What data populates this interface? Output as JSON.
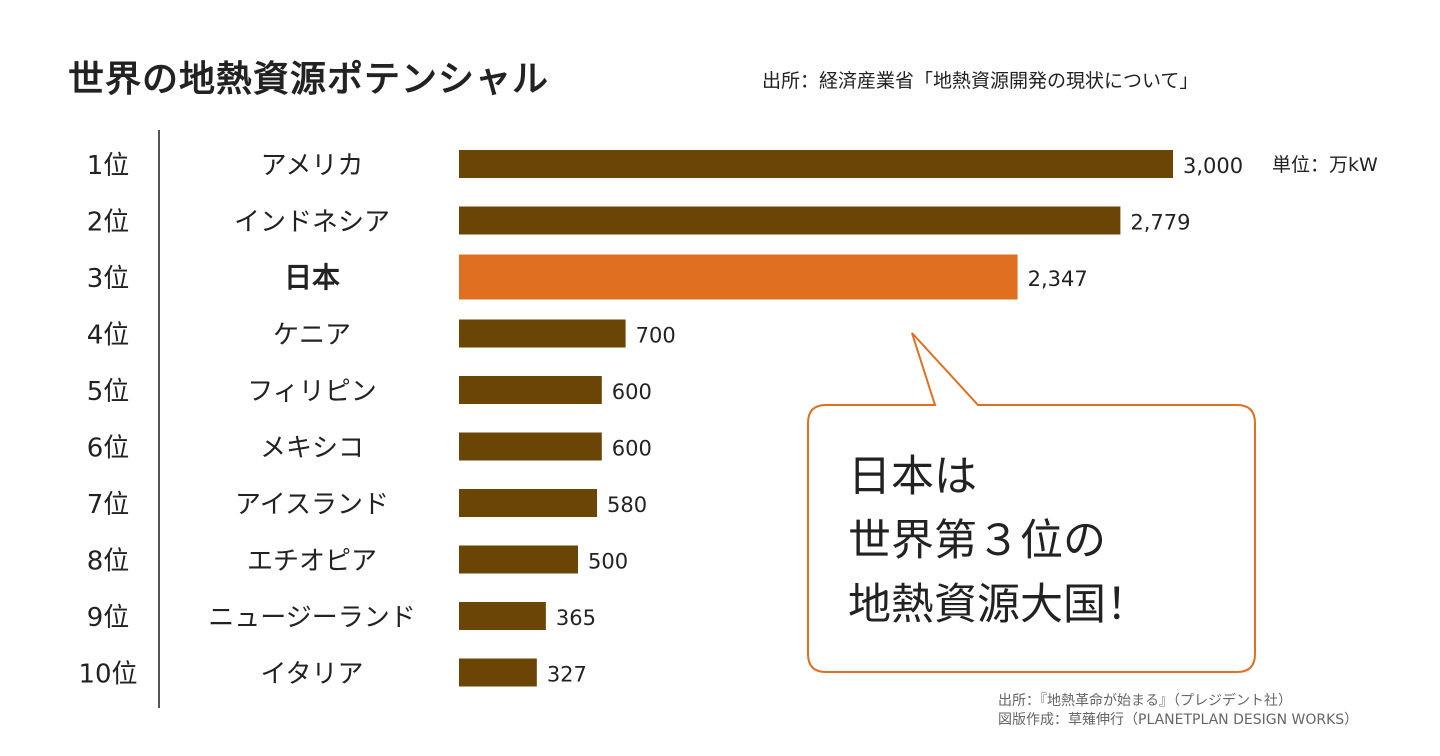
{
  "chart_data": {
    "type": "bar",
    "orientation": "horizontal",
    "title": "世界の地熱資源ポテンシャル",
    "source": "出所：経済産業省「地熱資源開発の現状について」",
    "unit_label": "単位：万kW",
    "ranks": [
      "1位",
      "2位",
      "3位",
      "4位",
      "5位",
      "6位",
      "7位",
      "8位",
      "9位",
      "10位"
    ],
    "categories": [
      "アメリカ",
      "インドネシア",
      "日本",
      "ケニア",
      "フィリピン",
      "メキシコ",
      "アイスランド",
      "エチオピア",
      "ニュージーランド",
      "イタリア"
    ],
    "values": [
      3000,
      2779,
      2347,
      700,
      600,
      600,
      580,
      500,
      365,
      327
    ],
    "value_labels": [
      "3,000",
      "2,779",
      "2,347",
      "700",
      "600",
      "600",
      "580",
      "500",
      "365",
      "327"
    ],
    "highlight_index": 2,
    "xlim": [
      0,
      3000
    ],
    "grid": false,
    "colors": {
      "default": "#6b4506",
      "highlight": "#e07020",
      "callout_border": "#e07020"
    },
    "callout": {
      "lines": [
        "日本は",
        "世界第３位の",
        "地熱資源大国！"
      ]
    },
    "credits": [
      "出所：『地熱革命が始まる』（プレジデント社）",
      "図版作成：草薙伸行（PLANETPLAN DESIGN WORKS）"
    ]
  }
}
